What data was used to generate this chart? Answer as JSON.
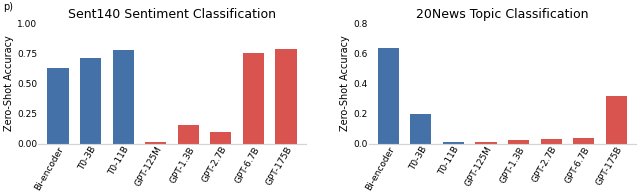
{
  "chart1": {
    "title": "Sent140 Sentiment Classification",
    "categories": [
      "Bi-encoder",
      "T0-3B",
      "T0-11B",
      "GPT-125M",
      "GPT-1.3B",
      "GPT-2.7B",
      "GPT-6.7B",
      "GPT-175B"
    ],
    "values": [
      0.63,
      0.71,
      0.78,
      0.015,
      0.155,
      0.095,
      0.755,
      0.79
    ],
    "colors": [
      "#4472a8",
      "#4472a8",
      "#4472a8",
      "#d9534f",
      "#d9534f",
      "#d9534f",
      "#d9534f",
      "#d9534f"
    ],
    "ylim": [
      0,
      1.0
    ],
    "yticks": [
      0.0,
      0.25,
      0.5,
      0.75,
      1.0
    ],
    "ytick_labels": [
      "0.00",
      "0.25",
      "0.50",
      "0.75",
      "1.00"
    ],
    "ylabel": "Zero-Shot Accuracy"
  },
  "chart2": {
    "title": "20News Topic Classification",
    "categories": [
      "Bi-encoder",
      "T0-3B",
      "T0-11B",
      "GPT-125M",
      "GPT-1.3B",
      "GPT-2.7B",
      "GPT-6.7B",
      "GPT-175B"
    ],
    "values": [
      0.635,
      0.195,
      0.013,
      0.007,
      0.025,
      0.028,
      0.038,
      0.315
    ],
    "colors": [
      "#4472a8",
      "#4472a8",
      "#4472a8",
      "#d9534f",
      "#d9534f",
      "#d9534f",
      "#d9534f",
      "#d9534f"
    ],
    "ylim": [
      0,
      0.8
    ],
    "yticks": [
      0.0,
      0.2,
      0.4,
      0.6,
      0.8
    ],
    "ytick_labels": [
      "0.0",
      "0.2",
      "0.4",
      "0.6",
      "0.8"
    ],
    "ylabel": "Zero-Shot Accuracy"
  },
  "figure_label": "p)",
  "bg_color": "#ffffff",
  "tick_label_fontsize": 6.5,
  "axis_label_fontsize": 7,
  "title_fontsize": 9
}
